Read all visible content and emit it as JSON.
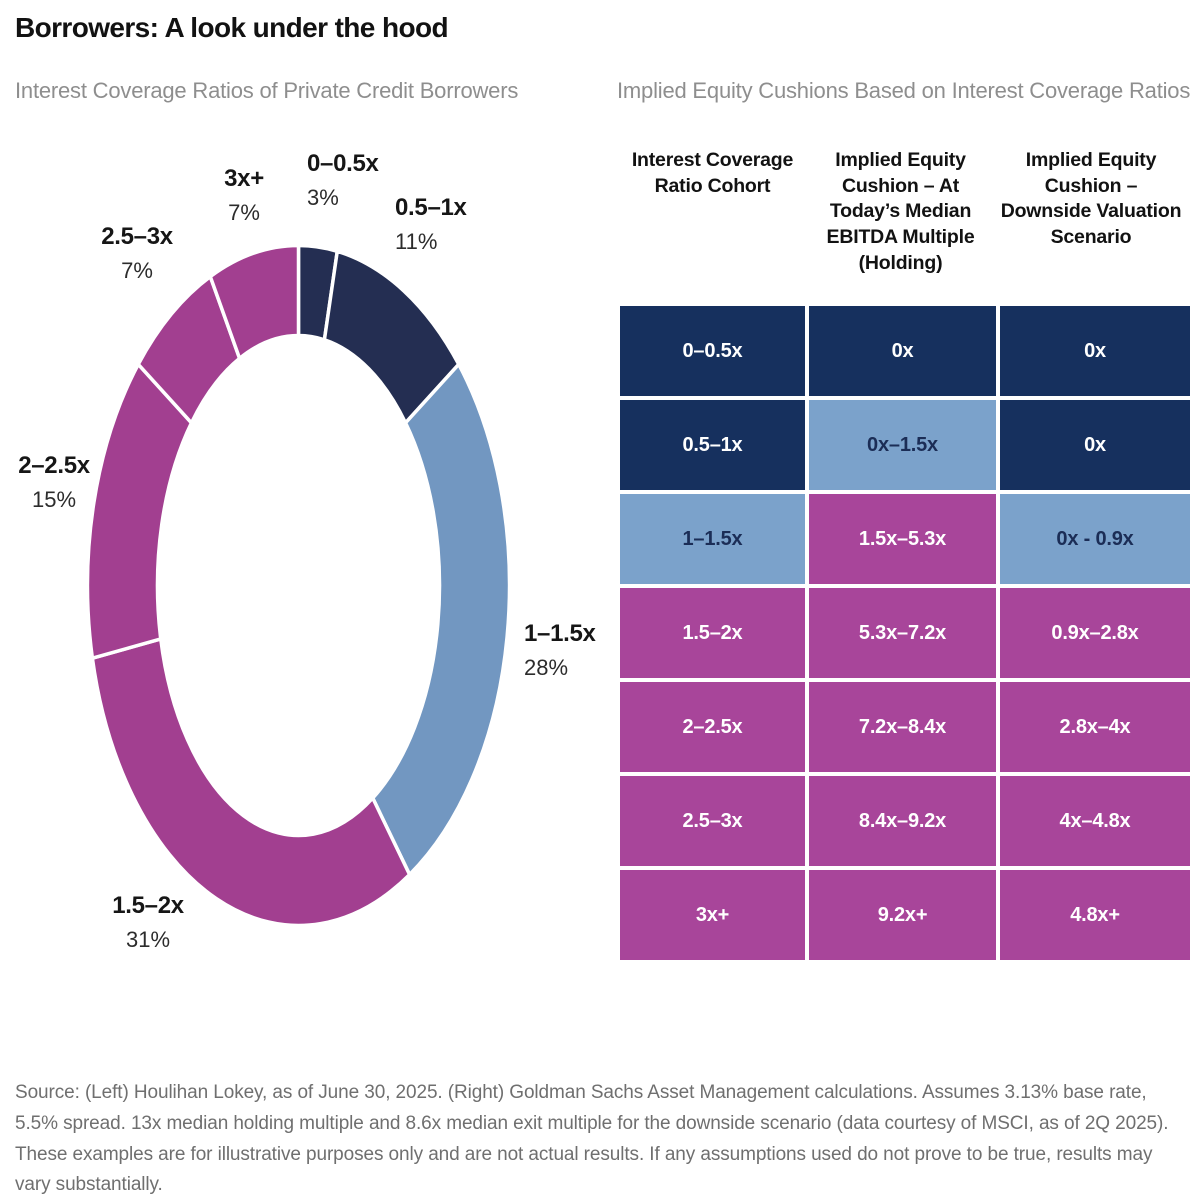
{
  "page": {
    "title": "Borrowers: A look under the hood"
  },
  "left_panel": {
    "subtitle": "Interest Coverage Ratios of Private Credit Borrowers"
  },
  "right_panel": {
    "subtitle": "Implied Equity Cushions Based on Interest Coverage Ratios",
    "table": {
      "headers": [
        "Interest Coverage Ratio Cohort",
        "Implied Equity Cushion – At Today’s Median EBITDA Multiple (Holding)",
        "Implied Equity Cushion – Downside Valuation Scenario"
      ],
      "rows": [
        {
          "cells": [
            {
              "text": "0–0.5x",
              "bg": "#16305e",
              "fg": "#ffffff"
            },
            {
              "text": "0x",
              "bg": "#16305e",
              "fg": "#ffffff"
            },
            {
              "text": "0x",
              "bg": "#16305e",
              "fg": "#ffffff"
            }
          ]
        },
        {
          "cells": [
            {
              "text": "0.5–1x",
              "bg": "#16305e",
              "fg": "#ffffff"
            },
            {
              "text": "0x–1.5x",
              "bg": "#7ba2cb",
              "fg": "#1b2d56"
            },
            {
              "text": "0x",
              "bg": "#16305e",
              "fg": "#ffffff"
            }
          ]
        },
        {
          "cells": [
            {
              "text": "1–1.5x",
              "bg": "#7ba2cb",
              "fg": "#1b2d56"
            },
            {
              "text": "1.5x–5.3x",
              "bg": "#a8459a",
              "fg": "#ffffff"
            },
            {
              "text": "0x - 0.9x",
              "bg": "#7ba2cb",
              "fg": "#1b2d56"
            }
          ]
        },
        {
          "cells": [
            {
              "text": "1.5–2x",
              "bg": "#a8459a",
              "fg": "#ffffff"
            },
            {
              "text": "5.3x–7.2x",
              "bg": "#a8459a",
              "fg": "#ffffff"
            },
            {
              "text": "0.9x–2.8x",
              "bg": "#a8459a",
              "fg": "#ffffff"
            }
          ]
        },
        {
          "cells": [
            {
              "text": "2–2.5x",
              "bg": "#a8459a",
              "fg": "#ffffff"
            },
            {
              "text": "7.2x–8.4x",
              "bg": "#a8459a",
              "fg": "#ffffff"
            },
            {
              "text": "2.8x–4x",
              "bg": "#a8459a",
              "fg": "#ffffff"
            }
          ]
        },
        {
          "cells": [
            {
              "text": "2.5–3x",
              "bg": "#a8459a",
              "fg": "#ffffff"
            },
            {
              "text": "8.4x–9.2x",
              "bg": "#a8459a",
              "fg": "#ffffff"
            },
            {
              "text": "4x–4.8x",
              "bg": "#a8459a",
              "fg": "#ffffff"
            }
          ]
        },
        {
          "cells": [
            {
              "text": "3x+",
              "bg": "#a8459a",
              "fg": "#ffffff"
            },
            {
              "text": "9.2x+",
              "bg": "#a8459a",
              "fg": "#ffffff"
            },
            {
              "text": "4.8x+",
              "bg": "#a8459a",
              "fg": "#ffffff"
            }
          ]
        }
      ]
    }
  },
  "chart_data": [
    {
      "type": "pie",
      "style": "donut",
      "title": "Interest Coverage Ratios of Private Credit Borrowers",
      "categories": [
        "0–0.5x",
        "0.5–1x",
        "1–1.5x",
        "1.5–2x",
        "2–2.5x",
        "2.5–3x",
        "3x+"
      ],
      "values": [
        3,
        11,
        28,
        31,
        15,
        7,
        7
      ],
      "colors": [
        "#242e52",
        "#242e52",
        "#7297c1",
        "#a23f90",
        "#a23f90",
        "#a23f90",
        "#a23f90"
      ],
      "point_labels": [
        {
          "range": "0–0.5x",
          "pct": "3%"
        },
        {
          "range": "0.5–1x",
          "pct": "11%"
        },
        {
          "range": "1–1.5x",
          "pct": "28%"
        },
        {
          "range": "1.5–2x",
          "pct": "31%"
        },
        {
          "range": "2–2.5x",
          "pct": "15%"
        },
        {
          "range": "2.5–3x",
          "pct": "7%"
        },
        {
          "range": "3x+",
          "pct": "7%"
        }
      ],
      "start_angle_deg": 0,
      "direction": "clockwise",
      "legend": "none"
    },
    {
      "type": "table",
      "title": "Implied Equity Cushions Based on Interest Coverage Ratios",
      "columns": [
        "Interest Coverage Ratio Cohort",
        "Implied Equity Cushion – At Today’s Median EBITDA Multiple (Holding)",
        "Implied Equity Cushion – Downside Valuation Scenario"
      ],
      "rows": [
        [
          "0–0.5x",
          "0x",
          "0x"
        ],
        [
          "0.5–1x",
          "0x–1.5x",
          "0x"
        ],
        [
          "1–1.5x",
          "1.5x–5.3x",
          "0x - 0.9x"
        ],
        [
          "1.5–2x",
          "5.3x–7.2x",
          "0.9x–2.8x"
        ],
        [
          "2–2.5x",
          "7.2x–8.4x",
          "2.8x–4x"
        ],
        [
          "2.5–3x",
          "8.4x–9.2x",
          "4x–4.8x"
        ],
        [
          "3x+",
          "9.2x+",
          "4.8x+"
        ]
      ]
    }
  ],
  "colors": {
    "navy": "#16305e",
    "light_blue": "#7ba2cb",
    "magenta": "#a8459a",
    "donut_navy": "#242e52",
    "donut_blue": "#7297c1",
    "donut_magenta": "#a23f90"
  },
  "footer": {
    "text": "Source: (Left) Houlihan Lokey, as of June 30, 2025. (Right) Goldman Sachs Asset Management calculations. Assumes 3.13% base rate, 5.5% spread. 13x median holding multiple and 8.6x median exit multiple for the downside scenario (data courtesy of MSCI, as of 2Q 2025). These examples are for illustrative purposes only and are not actual results. If any assumptions used do not prove to be true, results may vary substantially."
  }
}
